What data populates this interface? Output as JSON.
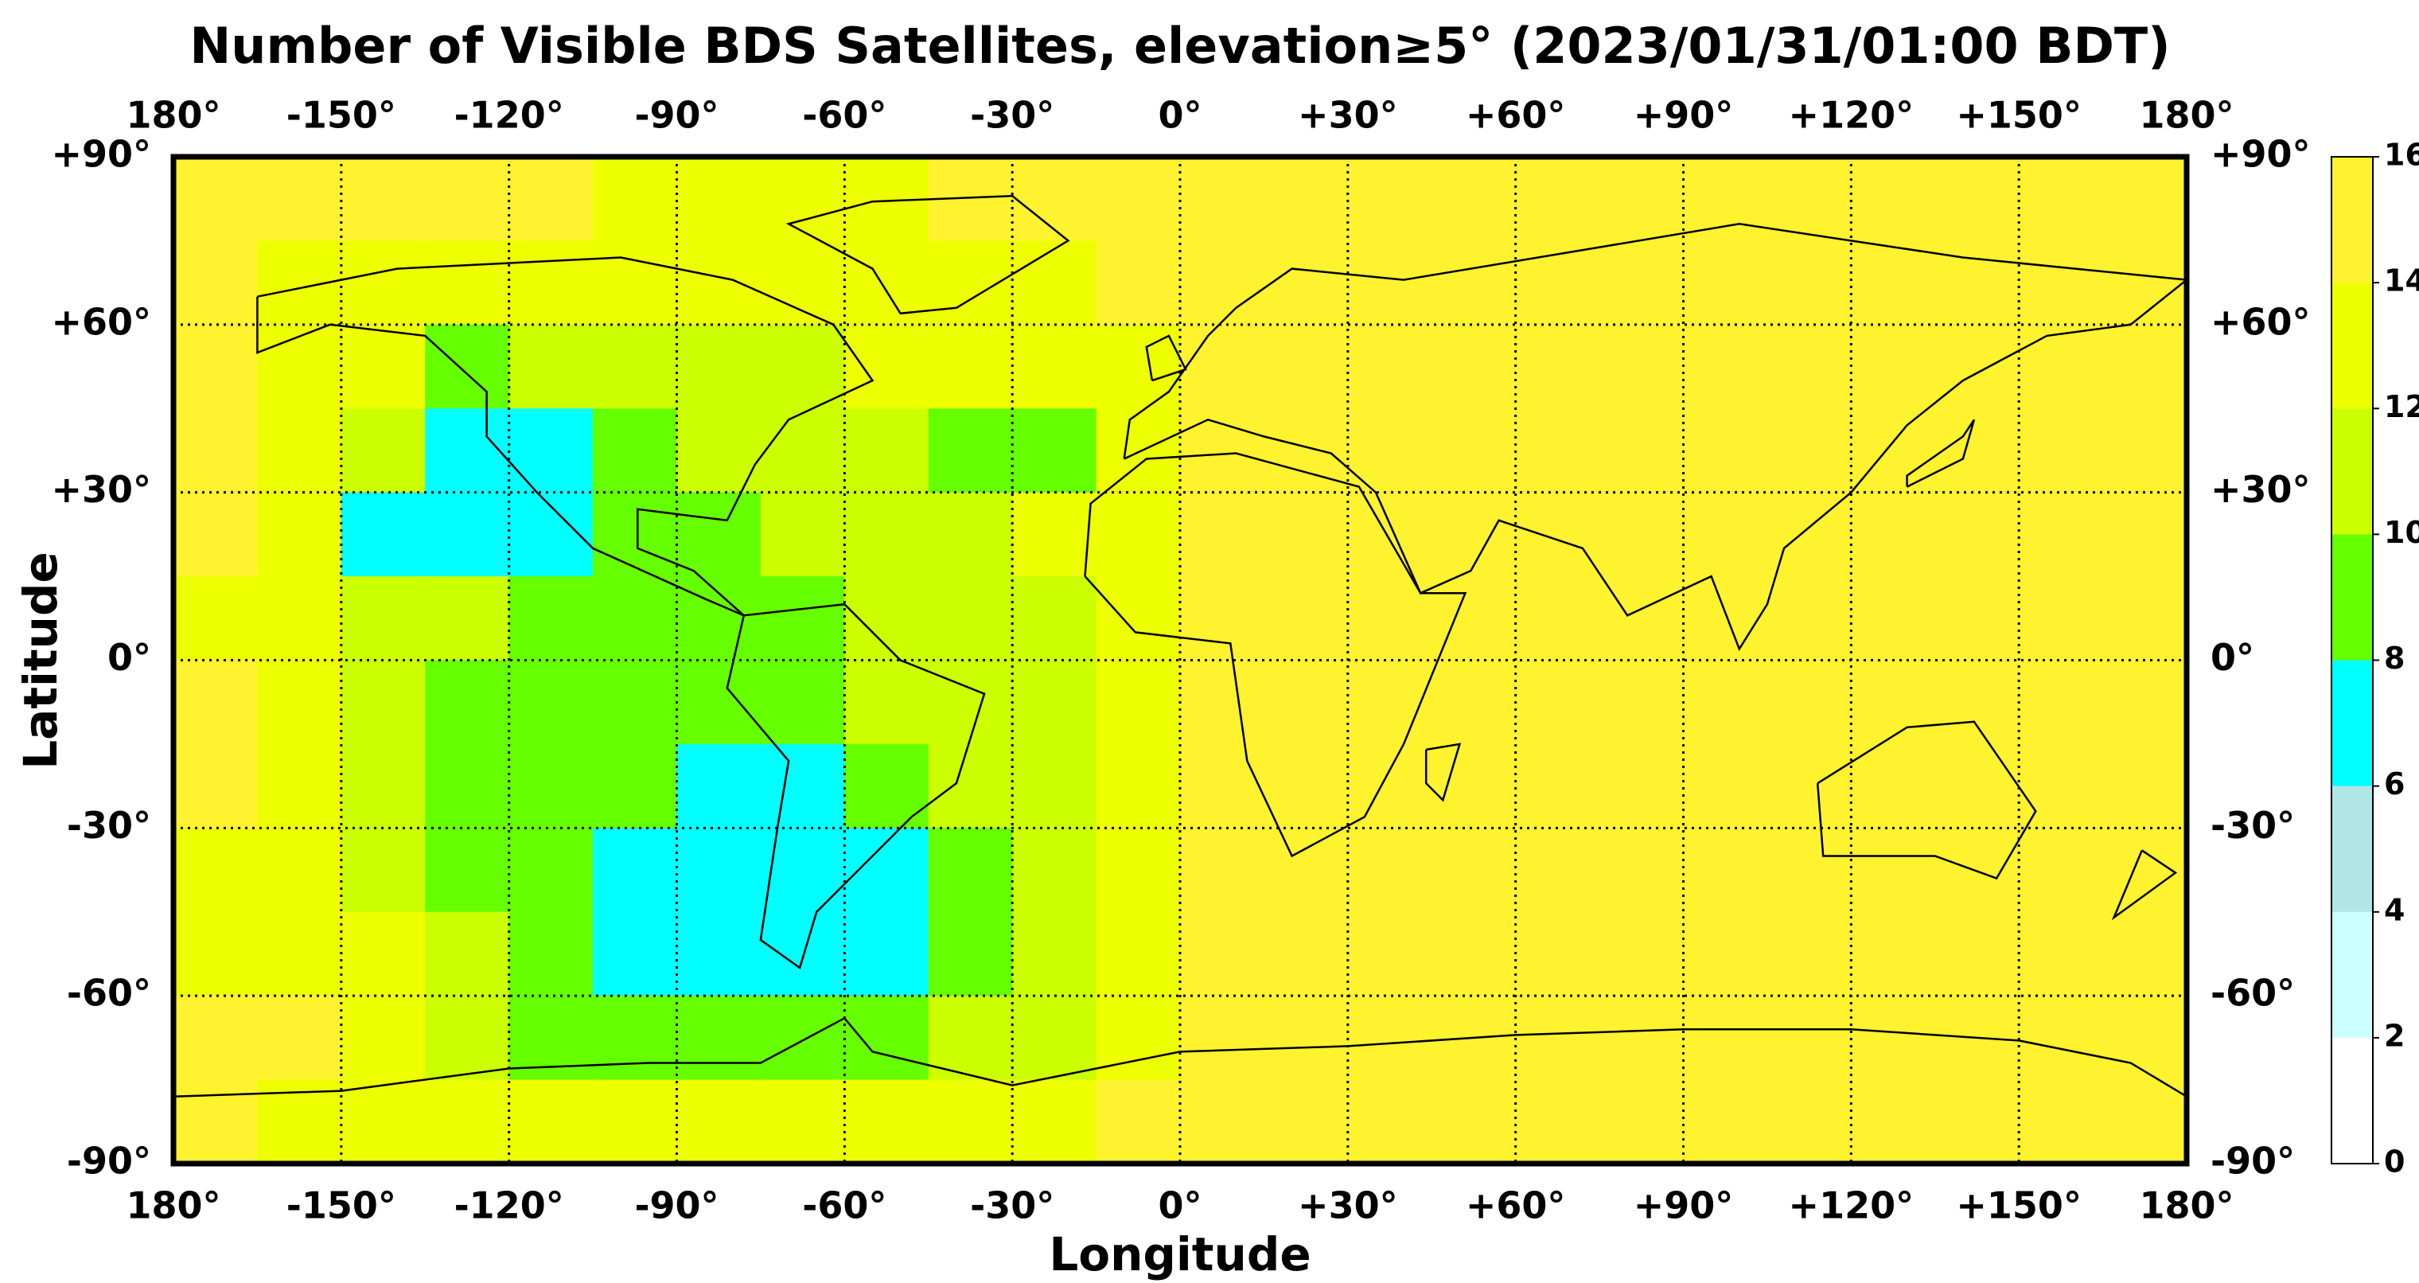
{
  "chart_data": {
    "type": "heatmap",
    "title": "Number of Visible BDS Satellites, elevation≥5° (2023/01/31/01:00 BDT)",
    "x_label": "Longitude",
    "y_label": "Latitude",
    "xlim": [
      -180,
      180
    ],
    "ylim": [
      -90,
      90
    ],
    "xticks": [
      {
        "value": -180,
        "label": "180°"
      },
      {
        "value": -150,
        "label": "-150°"
      },
      {
        "value": -120,
        "label": "-120°"
      },
      {
        "value": -90,
        "label": "-90°"
      },
      {
        "value": -60,
        "label": "-60°"
      },
      {
        "value": -30,
        "label": "-30°"
      },
      {
        "value": 0,
        "label": "0°"
      },
      {
        "value": 30,
        "label": "+30°"
      },
      {
        "value": 60,
        "label": "+60°"
      },
      {
        "value": 90,
        "label": "+90°"
      },
      {
        "value": 120,
        "label": "+120°"
      },
      {
        "value": 150,
        "label": "+150°"
      },
      {
        "value": 180,
        "label": "180°"
      }
    ],
    "yticks": [
      {
        "value": -90,
        "label": "-90°"
      },
      {
        "value": -60,
        "label": "-60°"
      },
      {
        "value": -30,
        "label": "-30°"
      },
      {
        "value": 0,
        "label": "0°"
      },
      {
        "value": 30,
        "label": "+30°"
      },
      {
        "value": 60,
        "label": "+60°"
      },
      {
        "value": 90,
        "label": "+90°"
      }
    ],
    "grid": true,
    "colorbar": {
      "levels": [
        0,
        2,
        4,
        6,
        8,
        10,
        12,
        14,
        16
      ],
      "colors": [
        "#ffffff",
        "#ccffff",
        "#b0e6e6",
        "#00ffff",
        "#66ff00",
        "#ccff00",
        "#eeff00",
        "#fff22e"
      ],
      "ticks": [
        0,
        2,
        4,
        6,
        8,
        10,
        12,
        14,
        16
      ]
    },
    "z": [
      [
        15,
        15,
        15,
        15,
        15,
        13,
        13,
        13,
        13,
        15,
        15,
        15,
        15,
        15,
        15,
        15,
        15,
        15,
        15,
        15,
        15,
        15,
        15,
        15
      ],
      [
        15,
        13,
        13,
        13,
        13,
        13,
        13,
        13,
        13,
        13,
        13,
        15,
        15,
        15,
        15,
        15,
        15,
        15,
        15,
        15,
        15,
        15,
        15,
        15
      ],
      [
        15,
        13,
        13,
        9,
        11,
        11,
        11,
        11,
        13,
        13,
        13,
        13,
        15,
        15,
        15,
        15,
        15,
        15,
        15,
        15,
        15,
        15,
        15,
        15
      ],
      [
        15,
        13,
        11,
        7,
        7,
        9,
        11,
        11,
        11,
        9,
        9,
        13,
        15,
        15,
        15,
        15,
        15,
        15,
        15,
        15,
        15,
        15,
        15,
        15
      ],
      [
        15,
        13,
        7,
        7,
        7,
        9,
        9,
        11,
        11,
        11,
        13,
        13,
        15,
        15,
        15,
        15,
        15,
        15,
        15,
        15,
        15,
        15,
        15,
        15
      ],
      [
        13,
        13,
        11,
        11,
        9,
        9,
        9,
        9,
        11,
        11,
        11,
        13,
        15,
        15,
        15,
        15,
        15,
        15,
        15,
        15,
        15,
        15,
        15,
        15
      ],
      [
        15,
        13,
        11,
        9,
        9,
        9,
        9,
        9,
        11,
        11,
        11,
        13,
        15,
        15,
        15,
        15,
        15,
        15,
        15,
        15,
        15,
        15,
        15,
        15
      ],
      [
        15,
        13,
        11,
        9,
        9,
        9,
        7,
        7,
        9,
        11,
        11,
        13,
        15,
        15,
        15,
        15,
        15,
        15,
        15,
        15,
        15,
        15,
        15,
        15
      ],
      [
        13,
        13,
        11,
        9,
        9,
        7,
        7,
        7,
        7,
        9,
        11,
        13,
        15,
        15,
        15,
        15,
        15,
        15,
        15,
        15,
        15,
        15,
        15,
        15
      ],
      [
        13,
        13,
        13,
        11,
        9,
        7,
        7,
        7,
        7,
        9,
        11,
        13,
        15,
        15,
        15,
        15,
        15,
        15,
        15,
        15,
        15,
        15,
        15,
        15
      ],
      [
        15,
        15,
        13,
        11,
        9,
        9,
        9,
        9,
        9,
        11,
        11,
        13,
        15,
        15,
        15,
        15,
        15,
        15,
        15,
        15,
        15,
        15,
        15,
        15
      ],
      [
        15,
        13,
        13,
        13,
        13,
        13,
        13,
        13,
        13,
        13,
        13,
        15,
        15,
        15,
        15,
        15,
        15,
        15,
        15,
        15,
        15,
        15,
        15,
        15
      ]
    ]
  }
}
